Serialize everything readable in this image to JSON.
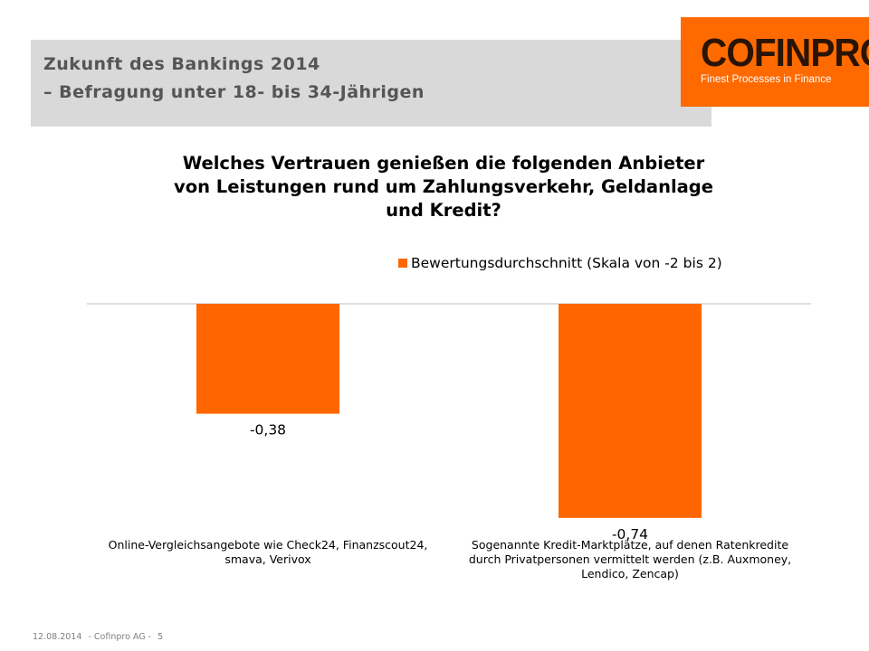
{
  "header": {
    "title_line1": "Zukunft des Bankings 2014",
    "title_line2": "– Befragung unter 18- bis 34-Jährigen"
  },
  "logo": {
    "name": "COFINPRO",
    "tagline": "Finest Processes in Finance",
    "color": "#ff6a00"
  },
  "footer": {
    "date": "12.08.2014",
    "company": "- Cofinpro AG -",
    "page": "5"
  },
  "chart_data": {
    "type": "bar",
    "title_lines": [
      "Welches Vertrauen genießen die folgenden Anbieter",
      "von Leistungen rund um Zahlungsverkehr, Geldanlage",
      "und Kredit?"
    ],
    "categories": [
      "Online-Vergleichsangebote wie Check24, Finanzscout24, smava, Verivox",
      "Sogenannte Kredit-Marktplätze, auf denen Ratenkredite durch Privatpersonen vermittelt werden (z.B. Auxmoney, Lendico, Zencap)"
    ],
    "category_lines": [
      [
        "Online-Vergleichsangebote wie Check24, Finanzscout24,",
        "smava, Verivox"
      ],
      [
        "Sogenannte Kredit-Marktplätze, auf denen Ratenkredite",
        "durch Privatpersonen vermittelt werden (z.B. Auxmoney,",
        "Lendico, Zencap)"
      ]
    ],
    "series": [
      {
        "name": "Bewertungsdurchschnitt (Skala von -2 bis 2)",
        "values": [
          -0.38,
          -0.74
        ],
        "value_labels": [
          "-0,38",
          "-0,74"
        ],
        "color": "#ff6600"
      }
    ],
    "ylim": [
      -0.8,
      0
    ],
    "grid": false,
    "legend_position": "top-right"
  }
}
